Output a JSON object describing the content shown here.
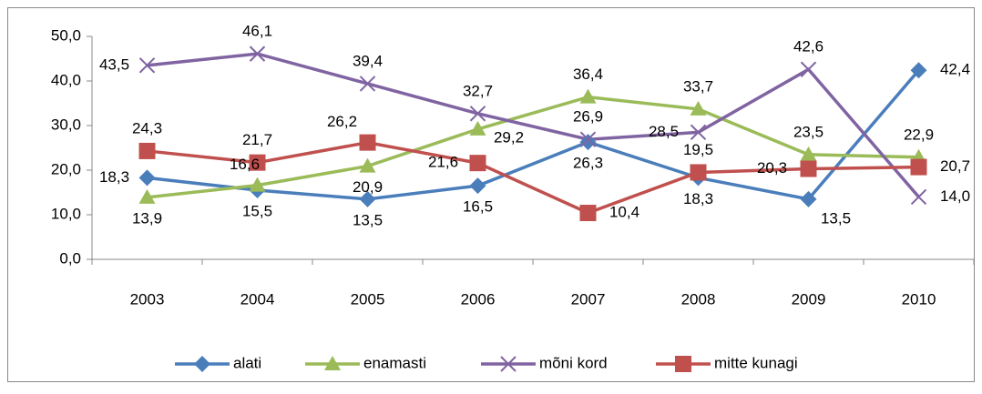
{
  "chart_data": {
    "type": "line",
    "categories": [
      "2003",
      "2004",
      "2005",
      "2006",
      "2007",
      "2008",
      "2009",
      "2010"
    ],
    "ylim": [
      0,
      50
    ],
    "yticks": [
      {
        "value": 0,
        "label": "0,0"
      },
      {
        "value": 10,
        "label": "10,0"
      },
      {
        "value": 20,
        "label": "20,0"
      },
      {
        "value": 30,
        "label": "30,0"
      },
      {
        "value": 40,
        "label": "40,0"
      },
      {
        "value": 50,
        "label": "50,0"
      }
    ],
    "grid": false,
    "legend": "bottom",
    "series": [
      {
        "name": "alati",
        "color": "#4a7ebb",
        "marker": "diamond",
        "values": [
          18.3,
          15.5,
          13.5,
          16.5,
          26.3,
          18.3,
          13.5,
          42.4
        ],
        "value_labels": [
          "18,3",
          "15,5",
          "13,5",
          "16,5",
          "26,3",
          "18,3",
          "13,5",
          "42,4"
        ]
      },
      {
        "name": "enamasti",
        "color": "#9bbb59",
        "marker": "triangle",
        "values": [
          13.9,
          16.6,
          20.9,
          29.2,
          36.4,
          33.7,
          23.5,
          22.9
        ],
        "value_labels": [
          "13,9",
          "16,6",
          "20,9",
          "29,2",
          "36,4",
          "33,7",
          "23,5",
          "22,9"
        ]
      },
      {
        "name": "mõni kord",
        "color": "#8064a2",
        "marker": "x",
        "values": [
          43.5,
          46.1,
          39.4,
          32.7,
          26.9,
          28.5,
          42.6,
          14.0
        ],
        "value_labels": [
          "43,5",
          "46,1",
          "39,4",
          "32,7",
          "26,9",
          "28,5",
          "42,6",
          "14,0"
        ]
      },
      {
        "name": "mitte kunagi",
        "color": "#c0504d",
        "marker": "square",
        "values": [
          24.3,
          21.7,
          26.2,
          21.6,
          10.4,
          19.5,
          20.3,
          20.7
        ],
        "value_labels": [
          "24,3",
          "21,7",
          "26,2",
          "21,6",
          "10,4",
          "19,5",
          "20,3",
          "20,7"
        ]
      }
    ]
  }
}
